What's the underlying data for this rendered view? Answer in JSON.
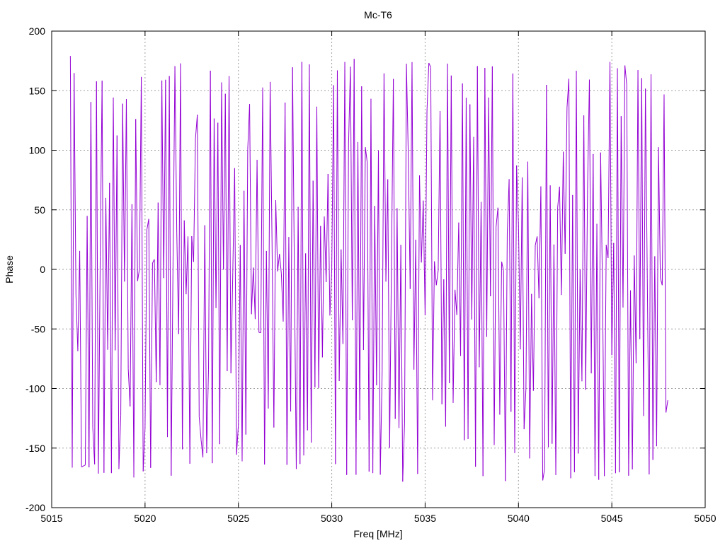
{
  "chart_data": {
    "type": "line",
    "title": "Mc-T6",
    "xlabel": "Freq [MHz]",
    "ylabel": "Phase",
    "xlim": [
      5015,
      5050
    ],
    "ylim": [
      -200,
      200
    ],
    "x_ticks": [
      "5015",
      "5020",
      "5025",
      "5030",
      "5035",
      "5040",
      "5045",
      "5050"
    ],
    "y_ticks": [
      "-200",
      "-150",
      "-100",
      "-50",
      "0",
      "50",
      "100",
      "150",
      "200"
    ],
    "grid": true,
    "legend": "none",
    "series": [
      {
        "color": "#9400d3",
        "x_start": 5016.0,
        "x_end": 5048.0,
        "x_step": 0.1,
        "seed": 60615,
        "phase_range": [
          -180,
          180
        ],
        "envelope": [
          [
            5016,
            180,
            -178
          ],
          [
            5017,
            175,
            -170
          ],
          [
            5018,
            160,
            -175
          ],
          [
            5019,
            145,
            -180
          ],
          [
            5020,
            170,
            -175
          ],
          [
            5021,
            165,
            -172
          ],
          [
            5022,
            175,
            -178
          ],
          [
            5023,
            165,
            -175
          ],
          [
            5024,
            175,
            -165
          ],
          [
            5025,
            170,
            -160
          ],
          [
            5026,
            178,
            -175
          ],
          [
            5027,
            175,
            -172
          ],
          [
            5028,
            180,
            -172
          ],
          [
            5029,
            178,
            -150
          ],
          [
            5030,
            175,
            -170
          ],
          [
            5031,
            178,
            -175
          ],
          [
            5032,
            172,
            -170
          ],
          [
            5033,
            170,
            -175
          ],
          [
            5034,
            175,
            -180
          ],
          [
            5035,
            178,
            -176
          ],
          [
            5036,
            175,
            -177
          ],
          [
            5037,
            175,
            -178
          ],
          [
            5038,
            170,
            -175
          ],
          [
            5039,
            178,
            -180
          ],
          [
            5040,
            172,
            -176
          ],
          [
            5041,
            170,
            -178
          ],
          [
            5042,
            178,
            -176
          ],
          [
            5043,
            176,
            -179
          ],
          [
            5044,
            170,
            -178
          ],
          [
            5045,
            178,
            -177
          ],
          [
            5046,
            170,
            -176
          ],
          [
            5047,
            170,
            -176
          ],
          [
            5048,
            180,
            -170
          ]
        ]
      }
    ]
  }
}
